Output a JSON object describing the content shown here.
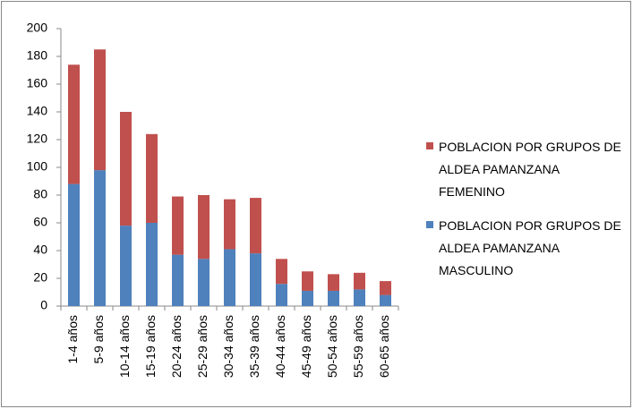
{
  "chart_data": {
    "type": "stacked_bar",
    "categories": [
      "1-4 años",
      "5-9 años",
      "10-14 años",
      "15-19 años",
      "20-24 años",
      "25-29 años",
      "30-34 años",
      "35-39 años",
      "40-44 años",
      "45-49 años",
      "50-54 años",
      "55-59 años",
      "60-65 años"
    ],
    "series": [
      {
        "name": "POBLACION POR GRUPOS DE ALDEA PAMANZANA MASCULINO",
        "color": "#4f81bd",
        "values": [
          88,
          98,
          58,
          60,
          37,
          34,
          41,
          38,
          16,
          11,
          11,
          12,
          8
        ]
      },
      {
        "name": "POBLACION POR GRUPOS DE ALDEA PAMANZANA FEMENINO",
        "color": "#c0504d",
        "values": [
          86,
          87,
          82,
          64,
          42,
          46,
          36,
          40,
          18,
          14,
          12,
          12,
          10
        ]
      }
    ],
    "ylim": [
      0,
      200
    ],
    "yticks": [
      0,
      20,
      40,
      60,
      80,
      100,
      120,
      140,
      160,
      180,
      200
    ],
    "grid": false,
    "legend": "right"
  }
}
